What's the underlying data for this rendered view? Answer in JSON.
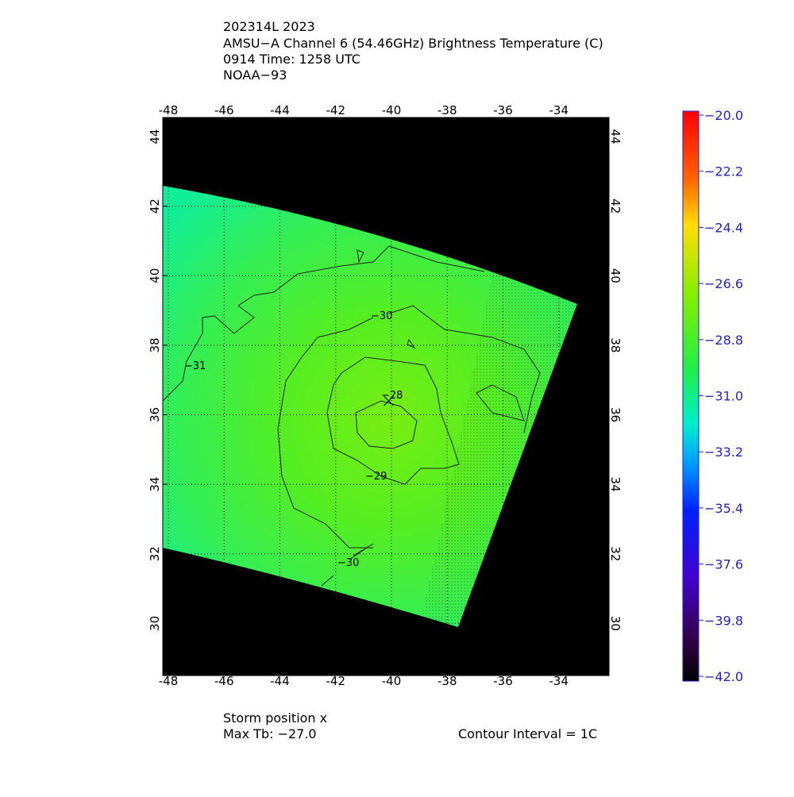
{
  "chart_data": {
    "type": "map",
    "title_lines": [
      "202314L 2023",
      "AMSU−A Channel 6 (54.46GHz) Brightness Temperature (C)",
      "0914 Time: 1258 UTC",
      "NOAA−93"
    ],
    "xlim": [
      -48.2,
      -32.2
    ],
    "xticks": [
      -48,
      -46,
      -44,
      -42,
      -40,
      -38,
      -36,
      -34
    ],
    "ylim": [
      28.5,
      44.55
    ],
    "yticks": [
      30,
      32,
      34,
      36,
      38,
      40,
      42,
      44
    ],
    "grid": true,
    "colorbar": {
      "lim": [
        -42,
        -20
      ],
      "ticks": [
        {
          "value": -20,
          "label": "−20.0"
        },
        {
          "value": -22.2,
          "label": "−22.2"
        },
        {
          "value": -24.4,
          "label": "−24.4"
        },
        {
          "value": -26.6,
          "label": "−26.6"
        },
        {
          "value": -28.8,
          "label": "−28.8"
        },
        {
          "value": -31,
          "label": "−31.0"
        },
        {
          "value": -33.2,
          "label": "−33.2"
        },
        {
          "value": -35.4,
          "label": "−35.4"
        },
        {
          "value": -37.6,
          "label": "−37.6"
        },
        {
          "value": -39.8,
          "label": "−39.8"
        },
        {
          "value": -42,
          "label": "−42.0"
        }
      ]
    },
    "contour_labels": [
      "−30",
      "−31",
      "−28",
      "−29",
      "−30"
    ],
    "storm_position": {
      "x": -40.1,
      "y": 36.4
    },
    "footer": {
      "storm": "Storm position x",
      "max_tb": "Max Tb: −27.0",
      "interval": "Contour Interval = 1C"
    }
  }
}
